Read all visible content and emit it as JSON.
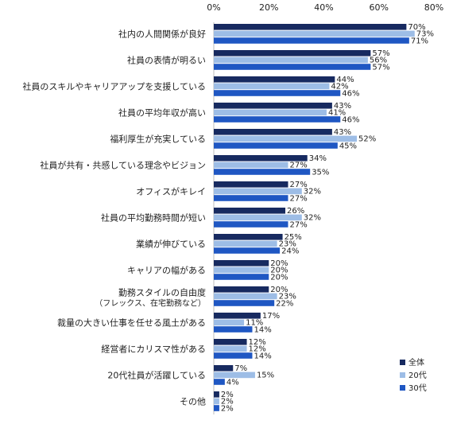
{
  "chart_data": {
    "type": "bar",
    "orientation": "horizontal",
    "categories": [
      "社内の人間関係が良好",
      "社員の表情が明るい",
      "社員のスキルやキャリアアップを支援している",
      "社員の平均年収が高い",
      "福利厚生が充実している",
      "社員が共有・共感している理念やビジョン",
      "オフィスがキレイ",
      "社員の平均勤務時間が短い",
      "業績が伸びている",
      "キャリアの幅がある",
      "勤務スタイルの自由度\n（フレックス、在宅勤務など）",
      "裁量の大きい仕事を任せる風土がある",
      "経営者にカリスマ性がある",
      "20代社員が活躍している",
      "その他"
    ],
    "series": [
      {
        "name": "全体",
        "color": "#172a60",
        "values": [
          70,
          57,
          44,
          43,
          43,
          34,
          27,
          26,
          25,
          20,
          20,
          17,
          12,
          7,
          2
        ]
      },
      {
        "name": "20代",
        "color": "#9dbde6",
        "values": [
          73,
          56,
          42,
          41,
          52,
          27,
          32,
          32,
          23,
          20,
          23,
          11,
          12,
          15,
          2
        ]
      },
      {
        "name": "30代",
        "color": "#1f57c3",
        "values": [
          71,
          57,
          46,
          46,
          45,
          35,
          27,
          27,
          24,
          20,
          22,
          14,
          14,
          4,
          2
        ]
      }
    ],
    "xlim": [
      0,
      80
    ],
    "xticks": [
      0,
      20,
      40,
      60,
      80
    ],
    "tick_suffix": "%",
    "value_suffix": "%",
    "grid": false,
    "legend_position": "bottom-right"
  }
}
